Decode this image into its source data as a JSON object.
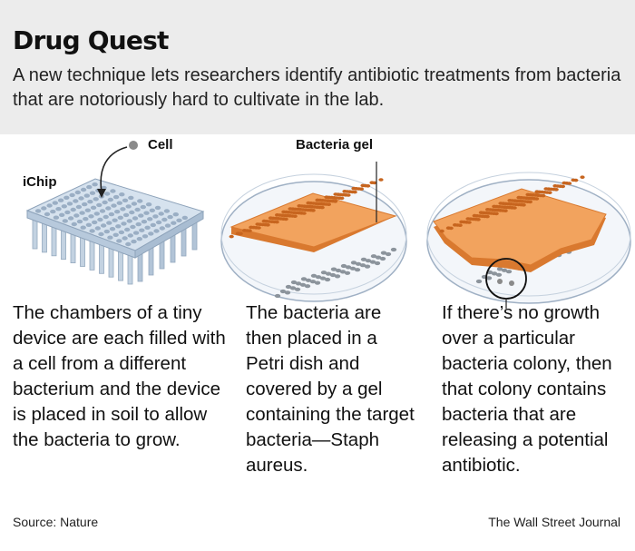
{
  "header": {
    "title": "Drug Quest",
    "subtitle": "A new technique lets researchers identify antibiotic treatments from bacteria that are notoriously hard to cultivate in the lab."
  },
  "diagram": {
    "labels": {
      "cell": "Cell",
      "ichip": "iChip",
      "bacteria_gel": "Bacteria gel"
    },
    "colors": {
      "header_bg": "#ececec",
      "chip": "#c9d7e6",
      "gel": "#f2a35e",
      "gel_edge": "#d9792f",
      "dish": "#eef3f8"
    }
  },
  "steps": [
    {
      "text": "The chambers of a tiny device are each filled with a cell from a different bacterium and the device is placed in soil to allow the bacteria to grow."
    },
    {
      "text": "The bacteria are then placed in a Petri dish and covered by a gel containing the target bacteria—Staph aureus."
    },
    {
      "text": "If there’s no growth over a particular bacteria colony, then that colony contains bacteria that are releasing a potential antibiotic."
    }
  ],
  "footer": {
    "source": "Source: Nature",
    "credit": "The Wall Street Journal"
  }
}
